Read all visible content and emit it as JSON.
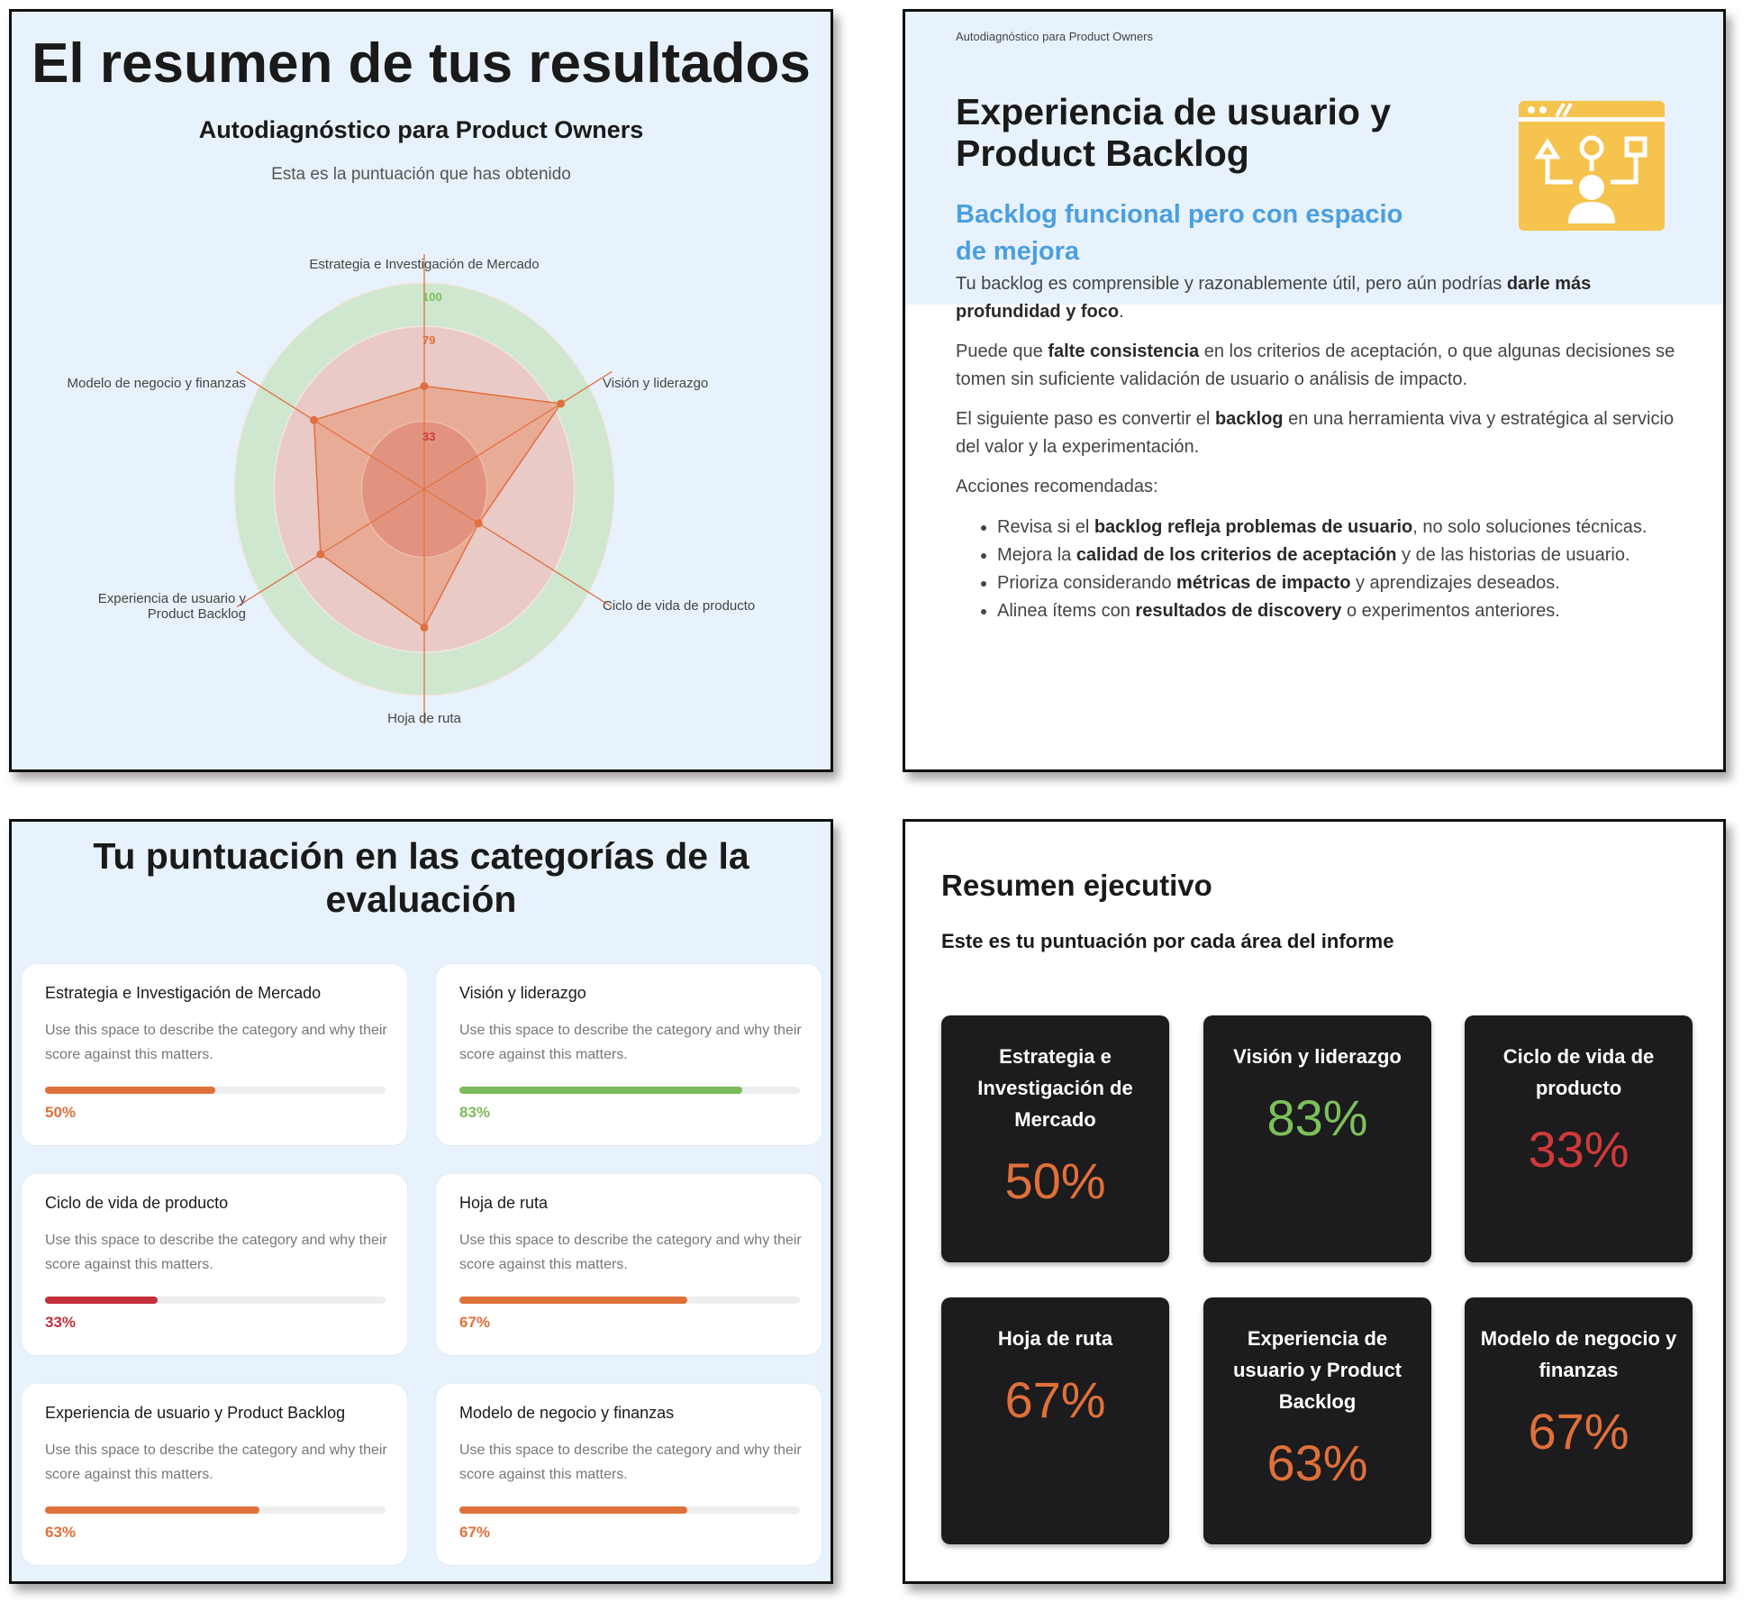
{
  "panel1": {
    "title": "El resumen de tus resultados",
    "subtitle": "Autodiagnóstico para Product Owners",
    "caption": "Esta es la puntuación que has obtenido",
    "radar": {
      "axes": [
        "Estrategia e Investigación de Mercado",
        "Visión y liderazgo",
        "Ciclo de vida de producto",
        "Hoja de ruta",
        "Experiencia de usuario y Product Backlog",
        "Modelo de negocio y finanzas"
      ],
      "values": [
        50,
        83,
        33,
        67,
        63,
        67
      ],
      "rings": [
        {
          "value": 100,
          "label": "100",
          "color": "#cfe6cf",
          "label_color": "#7cc05a"
        },
        {
          "value": 79,
          "label": "79",
          "color": "#e9cac6",
          "label_color": "#e0703a"
        },
        {
          "value": 33,
          "label": "33",
          "color": "#dfa4a2",
          "label_color": "#d03a3a"
        }
      ],
      "stroke": "#e07040",
      "fill": "rgba(232,120,70,0.38)"
    }
  },
  "panel2": {
    "kicker": "Autodiagnóstico para Product Owners",
    "title_line1": "Experiencia de usuario y",
    "title_line2": "Product Backlog",
    "subtitle_line1": "Backlog funcional pero con espacio",
    "subtitle_line2": "de mejora",
    "icon": "user-flow-window-icon",
    "accent": "#4a9fe0",
    "icon_color": "#f5c34e",
    "paragraphs": [
      [
        {
          "t": "Tu backlog es comprensible y razonablemente útil, pero aún podrías "
        },
        {
          "t": "darle más profundidad y foco",
          "b": true
        },
        {
          "t": "."
        }
      ],
      [
        {
          "t": "Puede que "
        },
        {
          "t": "falte consistencia",
          "b": true
        },
        {
          "t": " en los criterios de aceptación, o que algunas decisiones se tomen sin suficiente validación de usuario o análisis de impacto."
        }
      ],
      [
        {
          "t": "El siguiente paso es convertir el "
        },
        {
          "t": "backlog",
          "b": true
        },
        {
          "t": " en una herramienta viva y estratégica al servicio del valor y la experimentación."
        }
      ],
      [
        {
          "t": "Acciones recomendadas:"
        }
      ]
    ],
    "bullets": [
      [
        {
          "t": "Revisa si el "
        },
        {
          "t": "backlog refleja problemas de usuario",
          "b": true
        },
        {
          "t": ", no solo soluciones técnicas."
        }
      ],
      [
        {
          "t": "Mejora la "
        },
        {
          "t": "calidad de los criterios de aceptación",
          "b": true
        },
        {
          "t": " y de las historias de usuario."
        }
      ],
      [
        {
          "t": "Prioriza considerando "
        },
        {
          "t": "métricas de impacto",
          "b": true
        },
        {
          "t": " y aprendizajes deseados."
        }
      ],
      [
        {
          "t": "Alinea ítems con "
        },
        {
          "t": "resultados de discovery",
          "b": true
        },
        {
          "t": " o experimentos anteriores."
        }
      ]
    ]
  },
  "panel3": {
    "title_line1": "Tu puntuación en las categorías de la",
    "title_line2": "evaluación",
    "cards": [
      {
        "title": "Estrategia e Investigación de Mercado",
        "desc": "Use this space to describe the category and why their score against this matters.",
        "pct": "50%",
        "value": 50,
        "color": "#e0703a"
      },
      {
        "title": "Visión y liderazgo",
        "desc": "Use this space to describe the category and why their score against this matters.",
        "pct": "83%",
        "value": 83,
        "color": "#7cba5a"
      },
      {
        "title": "Ciclo de vida de producto",
        "desc": "Use this space to describe the category and why their score against this matters.",
        "pct": "33%",
        "value": 33,
        "color": "#c4303c"
      },
      {
        "title": "Hoja de ruta",
        "desc": "Use this space to describe the category and why their score against this matters.",
        "pct": "67%",
        "value": 67,
        "color": "#e0703a"
      },
      {
        "title": "Experiencia de usuario y Product Backlog",
        "desc": "Use this space to describe the category and why their score against this matters.",
        "pct": "63%",
        "value": 63,
        "color": "#e0703a"
      },
      {
        "title": "Modelo de negocio y finanzas",
        "desc": "Use this space to describe the category and why their score against this matters.",
        "pct": "67%",
        "value": 67,
        "color": "#e0703a"
      }
    ]
  },
  "panel4": {
    "title": "Resumen ejecutivo",
    "subtitle": "Este es tu puntuación por cada área del informe",
    "cards": [
      {
        "title": "Estrategia e Investigación de Mercado",
        "pct": "50%",
        "color": "#e0703a"
      },
      {
        "title": "Visión y liderazgo",
        "pct": "83%",
        "color": "#7cc05a"
      },
      {
        "title": "Ciclo de vida de producto",
        "pct": "33%",
        "color": "#d03a3a"
      },
      {
        "title": "Hoja de ruta",
        "pct": "67%",
        "color": "#e0703a"
      },
      {
        "title": "Experiencia de usuario y Product Backlog",
        "pct": "63%",
        "color": "#e0703a"
      },
      {
        "title": "Modelo de negocio y finanzas",
        "pct": "67%",
        "color": "#e0703a"
      }
    ]
  }
}
